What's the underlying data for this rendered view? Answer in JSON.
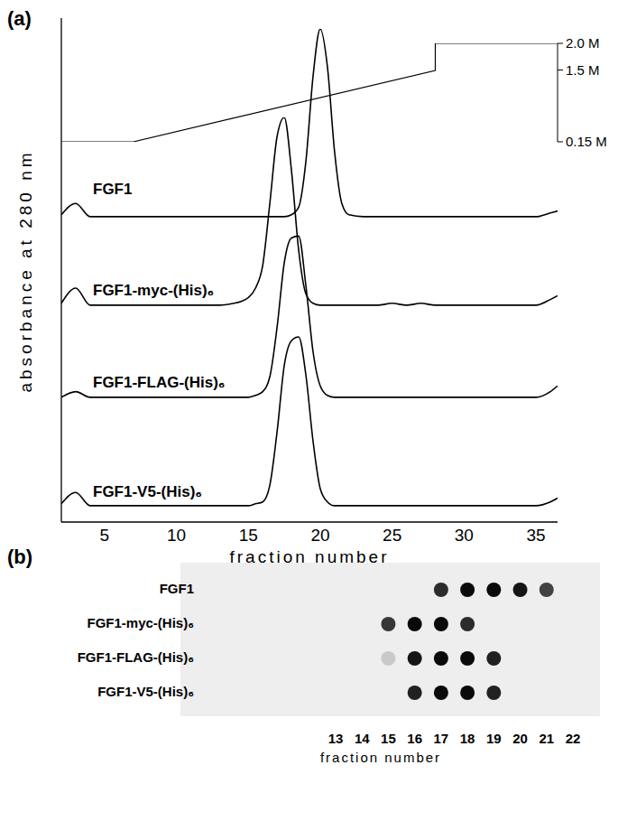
{
  "chart_data": [
    {
      "type": "line",
      "panel": "(a)",
      "x_label": "fraction number",
      "y_label": "absorbance at 280 nm",
      "x": [
        2,
        3,
        4,
        5,
        6,
        7,
        8,
        9,
        10,
        11,
        12,
        13,
        14,
        14.5,
        15,
        15.5,
        16,
        16.5,
        17,
        17.5,
        18,
        18.5,
        19,
        19.5,
        20,
        20.5,
        21,
        21.5,
        22,
        23,
        24,
        25,
        26,
        27,
        28,
        29,
        30,
        31,
        32,
        33,
        34,
        35,
        36,
        36.5
      ],
      "xlim": [
        2,
        36.5
      ],
      "xticks": [
        5,
        10,
        15,
        20,
        25,
        30,
        35
      ],
      "ylim": [
        0,
        1
      ],
      "y2lim": [
        0.15,
        2
      ],
      "y2ticks": [
        {
          "value": 0.15,
          "label": "0.15 M"
        },
        {
          "value": 1.5,
          "label": "1.5 M"
        },
        {
          "value": 2,
          "label": "2.0 M"
        }
      ],
      "series": [
        {
          "name": "FGF1",
          "color": "#000000",
          "values": [
            0.02,
            0.08,
            0.01,
            0.01,
            0.01,
            0.01,
            0.01,
            0.01,
            0.01,
            0.01,
            0.01,
            0.01,
            0.01,
            0.01,
            0.01,
            0.01,
            0.01,
            0.01,
            0.01,
            0.01,
            0.02,
            0.06,
            0.3,
            0.75,
            1,
            0.8,
            0.35,
            0.08,
            0.02,
            0.01,
            0.01,
            0.01,
            0.01,
            0.01,
            0.01,
            0.01,
            0.01,
            0.01,
            0.01,
            0.01,
            0.01,
            0.01,
            0.03,
            0.04
          ]
        },
        {
          "name": "FGF1-myc-(His)₆",
          "color": "#000000",
          "values": [
            0.02,
            0.1,
            0.01,
            0.01,
            0.01,
            0.01,
            0.01,
            0.01,
            0.01,
            0.01,
            0.01,
            0.01,
            0.02,
            0.03,
            0.05,
            0.1,
            0.22,
            0.55,
            0.9,
            1,
            0.72,
            0.3,
            0.07,
            0.02,
            0.01,
            0.01,
            0.01,
            0.01,
            0.01,
            0.01,
            0.01,
            0.02,
            0.01,
            0.02,
            0.01,
            0.01,
            0.01,
            0.01,
            0.01,
            0.01,
            0.01,
            0.01,
            0.04,
            0.06
          ]
        },
        {
          "name": "FGF1-FLAG-(His)₆",
          "color": "#000000",
          "values": [
            0.01,
            0.04,
            0.01,
            0.01,
            0.01,
            0.01,
            0.01,
            0.01,
            0.01,
            0.01,
            0.01,
            0.01,
            0.01,
            0.01,
            0.01,
            0.02,
            0.04,
            0.12,
            0.38,
            0.72,
            0.85,
            0.86,
            0.6,
            0.25,
            0.07,
            0.02,
            0.01,
            0.01,
            0.01,
            0.01,
            0.01,
            0.01,
            0.01,
            0.01,
            0.01,
            0.01,
            0.01,
            0.01,
            0.01,
            0.01,
            0.01,
            0.01,
            0.04,
            0.07
          ]
        },
        {
          "name": "FGF1-V5-(His)₆",
          "color": "#000000",
          "values": [
            0.02,
            0.08,
            0.01,
            0.01,
            0.01,
            0.01,
            0.01,
            0.01,
            0.01,
            0.01,
            0.01,
            0.01,
            0.01,
            0.01,
            0.01,
            0.02,
            0.03,
            0.12,
            0.4,
            0.75,
            0.88,
            0.9,
            0.7,
            0.35,
            0.1,
            0.03,
            0.01,
            0.01,
            0.01,
            0.01,
            0.01,
            0.01,
            0.01,
            0.01,
            0.01,
            0.01,
            0.01,
            0.01,
            0.01,
            0.01,
            0.01,
            0.01,
            0.03,
            0.05
          ]
        },
        {
          "axis": "y2",
          "color": "#000000",
          "x": [
            2,
            7,
            28,
            28,
            36.5
          ],
          "values": [
            0.15,
            0.15,
            1.49,
            2,
            2
          ]
        }
      ]
    },
    {
      "type": "dot_blot",
      "panel": "(b)",
      "x_label": "fraction number",
      "xlim": [
        13,
        22
      ],
      "xticks": [
        13,
        14,
        15,
        16,
        17,
        18,
        19,
        20,
        21,
        22
      ],
      "rows": [
        {
          "name": "FGF1",
          "fractions": [
            17,
            18,
            19,
            20,
            21
          ],
          "intensity": [
            0.85,
            1,
            1,
            0.95,
            0.75
          ]
        },
        {
          "name": "FGF1-myc-(His)₆",
          "fractions": [
            15,
            16,
            17,
            18
          ],
          "intensity": [
            0.8,
            1,
            1,
            0.85
          ]
        },
        {
          "name": "FGF1-FLAG-(His)₆",
          "fractions": [
            15,
            16,
            17,
            18,
            19
          ],
          "intensity": [
            0.15,
            0.95,
            1,
            1,
            0.9
          ]
        },
        {
          "name": "FGF1-V5-(His)₆",
          "fractions": [
            16,
            17,
            18,
            19
          ],
          "intensity": [
            0.9,
            1,
            1,
            0.9
          ]
        }
      ]
    }
  ]
}
